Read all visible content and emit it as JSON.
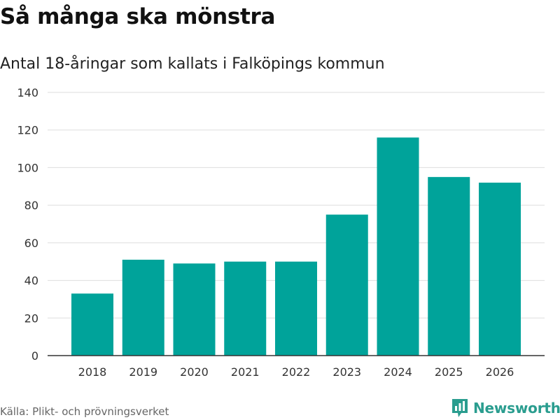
{
  "title": "Så många ska mönstra",
  "subtitle": "Antal 18-åringar som kallats i Falköpings kommun",
  "source": "Källa: Plikt- och prövningsverket",
  "brand": "Newsworthy",
  "colors": {
    "bar": "#00a39a",
    "grid": "#dddddd",
    "axis": "#333333",
    "brand": "#2a9d8f"
  },
  "chart_data": {
    "type": "bar",
    "title": "Så många ska mönstra",
    "subtitle": "Antal 18-åringar som kallats i Falköpings kommun",
    "xlabel": "",
    "ylabel": "",
    "categories": [
      "2018",
      "2019",
      "2020",
      "2021",
      "2022",
      "2023",
      "2024",
      "2025",
      "2026"
    ],
    "values": [
      33,
      51,
      49,
      50,
      50,
      75,
      116,
      95,
      92
    ],
    "ylim": [
      0,
      140
    ],
    "yticks": [
      0,
      20,
      40,
      60,
      80,
      100,
      120,
      140
    ],
    "grid": true,
    "legend": "none"
  }
}
